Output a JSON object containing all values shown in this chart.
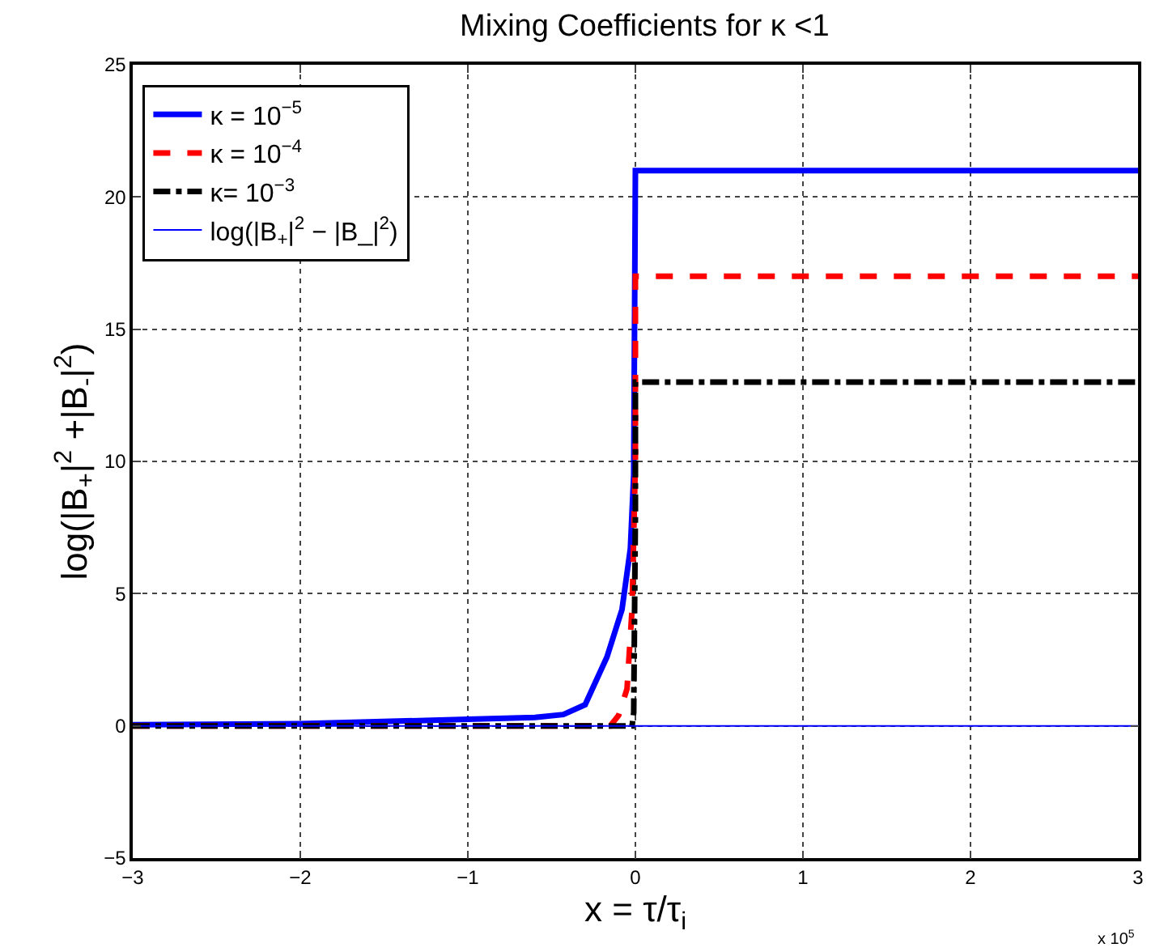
{
  "chart_data": {
    "type": "line",
    "title": "Mixing Coefficients for κ <1",
    "xlabel": "x = τ/τ$_{i}$",
    "ylabel": "log(|B$_{+}$|$^{2}$ +|B$_{-}$|$^{2}$)",
    "xlim": [
      -3,
      3
    ],
    "xticks": [
      -3,
      -2,
      -1,
      0,
      1,
      2,
      3
    ],
    "ylim": [
      -5,
      25
    ],
    "yticks": [
      -5,
      0,
      5,
      10,
      15,
      20,
      25
    ],
    "grid": true,
    "legend": "top left",
    "marker": "none",
    "annotations": [
      "x 10$^{5}$"
    ],
    "series": [
      {
        "name": "κ = 10$^{−5}$",
        "color": "#0000ff",
        "line_style": "solid",
        "x": [
          -3,
          -2,
          -1,
          -0.6,
          -0.43,
          -0.3,
          -0.17,
          -0.08,
          -0.03,
          -0.01,
          0,
          3
        ],
        "values": [
          0.04,
          0.08,
          0.25,
          0.32,
          0.43,
          0.8,
          2.6,
          4.4,
          6.7,
          9.5,
          21,
          21
        ]
      },
      {
        "name": "κ = 10$^{−4}$",
        "color": "#ff0000",
        "line_style": "dashed",
        "x": [
          -3,
          -0.15,
          -0.1,
          -0.05,
          -0.02,
          0,
          0,
          3
        ],
        "values": [
          0,
          0,
          0.4,
          1.4,
          4.4,
          10,
          17,
          17
        ]
      },
      {
        "name": "κ= 10$^{−3}$",
        "color": "#000000",
        "line_style": "dashdot",
        "x": [
          -3,
          -0.02,
          -0.01,
          0,
          0,
          3
        ],
        "values": [
          0,
          0,
          0.5,
          8,
          13,
          13
        ]
      },
      {
        "name": "log(|B$_{+}$|$^{2}$ − |B_|$^{2}$)",
        "color": "#0000ff",
        "line_style": "solid",
        "x": [
          -3,
          3
        ],
        "values": [
          0,
          0
        ]
      }
    ]
  }
}
